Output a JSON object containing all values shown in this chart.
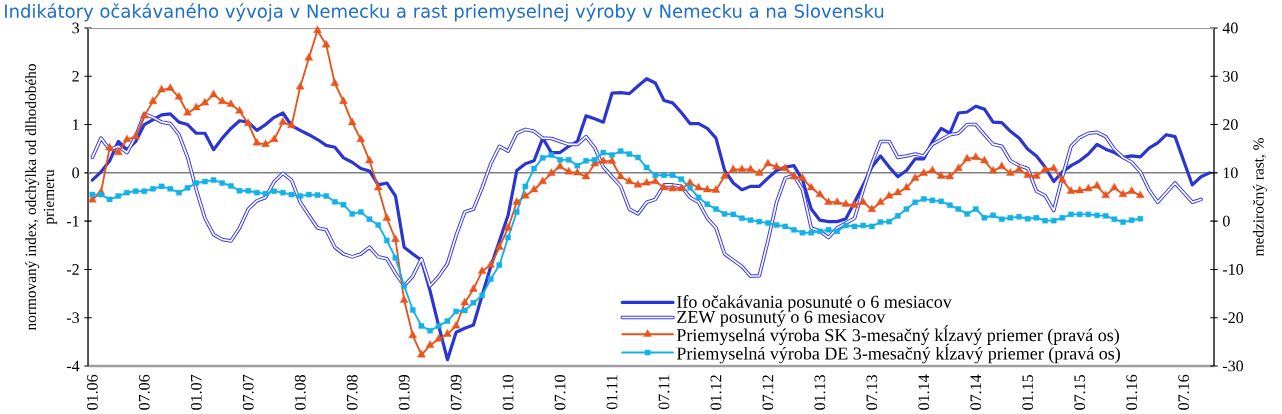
{
  "chart_data": {
    "type": "line",
    "title": "Indikátory očakávaného vývoja v Nemecku a rast priemyselnej výroby v Nemecku a na Slovensku",
    "ylabel": "normovaný index, odchýlka od dlhodobého priemeru",
    "y2label": "medziročný rast, %",
    "categories": [
      "01.06",
      null,
      null,
      null,
      null,
      null,
      "07.06",
      null,
      null,
      null,
      null,
      null,
      "01.07",
      null,
      null,
      null,
      null,
      null,
      "07.07",
      null,
      null,
      null,
      null,
      null,
      "01.08",
      null,
      null,
      null,
      null,
      null,
      "07.08",
      null,
      null,
      null,
      null,
      null,
      "01.09",
      null,
      null,
      null,
      null,
      null,
      "07.09",
      null,
      null,
      null,
      null,
      null,
      "01.10",
      null,
      null,
      null,
      null,
      null,
      "07.10",
      null,
      null,
      null,
      null,
      null,
      "01.11",
      null,
      null,
      null,
      null,
      null,
      "07.11",
      null,
      null,
      null,
      null,
      null,
      "01.12",
      null,
      null,
      null,
      null,
      null,
      "07.12",
      null,
      null,
      null,
      null,
      null,
      "01.13",
      null,
      null,
      null,
      null,
      null,
      "07.13",
      null,
      null,
      null,
      null,
      null,
      "01.14",
      null,
      null,
      null,
      null,
      null,
      "07.14",
      null,
      null,
      null,
      null,
      null,
      "01.15",
      null,
      null,
      null,
      null,
      null,
      "07.15",
      null,
      null,
      null,
      null,
      null,
      "01.16",
      null,
      null,
      null,
      null,
      null,
      "07.16",
      null,
      null,
      null
    ],
    "ylim": [
      -4,
      3
    ],
    "yticks": [
      -4,
      -3,
      -2,
      -1,
      0,
      1,
      2,
      3
    ],
    "y2lim": [
      -30,
      40
    ],
    "y2ticks": [
      -30,
      -20,
      -10,
      0,
      10,
      20,
      30,
      40
    ],
    "legend": "bottom right",
    "ref_lines": [
      {
        "axis": "y",
        "value": 0,
        "color": "#808080"
      }
    ],
    "series": [
      {
        "name": "Ifo očakávania posunuté o 6 mesiacov",
        "color": "#2b36d0",
        "values": [
          -0.15,
          0.02,
          0.25,
          0.65,
          0.48,
          0.65,
          1.0,
          1.1,
          1.2,
          1.22,
          1.05,
          1.0,
          0.82,
          0.82,
          0.48,
          0.72,
          0.92,
          1.08,
          1.05,
          0.88,
          1.0,
          1.15,
          1.24,
          0.98,
          0.88,
          0.79,
          0.69,
          0.57,
          0.53,
          0.31,
          0.22,
          0.09,
          0.04,
          -0.25,
          -0.21,
          -0.48,
          -1.54,
          -1.68,
          -1.81,
          -2.45,
          -3.18,
          -3.87,
          -3.3,
          -3.22,
          -3.15,
          -2.54,
          -1.94,
          -1.41,
          -0.88,
          0.05,
          0.19,
          0.25,
          0.72,
          0.42,
          0.42,
          0.55,
          0.65,
          1.18,
          1.12,
          1.05,
          1.65,
          1.66,
          1.64,
          1.8,
          1.95,
          1.86,
          1.5,
          1.45,
          1.25,
          1.02,
          1.02,
          0.92,
          0.72,
          0.05,
          -0.21,
          -0.35,
          -0.28,
          -0.28,
          -0.11,
          0.05,
          0.12,
          0.15,
          -0.15,
          -0.75,
          -0.98,
          -1.01,
          -1.01,
          -0.95,
          -0.61,
          -0.25,
          0.12,
          0.35,
          0.12,
          -0.08,
          0.05,
          0.29,
          0.29,
          0.65,
          0.92,
          0.82,
          1.24,
          1.26,
          1.38,
          1.32,
          1.05,
          1.04,
          0.86,
          0.72,
          0.49,
          0.35,
          0.12,
          -0.18,
          0.02,
          0.15,
          0.25,
          0.39,
          0.59,
          0.49,
          0.42,
          0.32,
          0.35,
          0.33,
          0.51,
          0.62,
          0.79,
          0.75,
          0.25,
          -0.25,
          -0.08,
          0.0
        ]
      },
      {
        "name": "ZEW posunutý o 6 mesiacov",
        "color": "#3c3ce6",
        "values": [
          0.32,
          0.72,
          0.48,
          0.55,
          0.42,
          0.75,
          1.22,
          1.15,
          1.05,
          1.02,
          0.79,
          0.32,
          -0.35,
          -0.94,
          -1.28,
          -1.38,
          -1.41,
          -1.14,
          -0.75,
          -0.58,
          -0.51,
          -0.18,
          -0.01,
          -0.15,
          -0.61,
          -0.88,
          -1.14,
          -1.18,
          -1.54,
          -1.68,
          -1.74,
          -1.68,
          -1.54,
          -1.74,
          -1.78,
          -2.08,
          -2.34,
          -2.14,
          -1.78,
          -2.34,
          -2.14,
          -1.88,
          -1.3,
          -0.81,
          -0.75,
          -0.31,
          0.19,
          0.55,
          0.45,
          0.82,
          0.9,
          0.86,
          0.72,
          0.71,
          0.65,
          0.59,
          0.59,
          0.75,
          0.52,
          0.12,
          -0.08,
          -0.28,
          -0.75,
          -0.85,
          -0.61,
          -0.55,
          -0.25,
          -0.25,
          -0.28,
          -0.51,
          -0.61,
          -0.94,
          -1.14,
          -1.68,
          -1.81,
          -1.94,
          -2.14,
          -2.13,
          -1.41,
          -0.61,
          -0.11,
          -0.05,
          -0.35,
          -1.14,
          -1.21,
          -1.34,
          -1.14,
          -1.04,
          -0.94,
          -0.35,
          0.19,
          0.65,
          0.65,
          0.32,
          0.35,
          0.39,
          0.35,
          0.59,
          0.69,
          0.79,
          0.82,
          1.0,
          1.0,
          0.79,
          0.59,
          0.55,
          0.25,
          0.15,
          0.09,
          -0.38,
          -0.47,
          -0.78,
          -0.08,
          0.55,
          0.73,
          0.82,
          0.84,
          0.75,
          0.49,
          0.32,
          0.22,
          0.02,
          -0.35,
          -0.61,
          -0.41,
          -0.21,
          -0.41,
          -0.61,
          -0.55,
          null
        ]
      },
      {
        "name": "Priemyselná výroba SK 3-mesačný kĺzavý priemer (pravá os)",
        "color": "#e8541c",
        "marker": "triangle",
        "axis": "y2",
        "values": [
          4.4,
          6.0,
          15.2,
          14.2,
          16.9,
          17.5,
          21.8,
          24.8,
          27.2,
          27.5,
          25.7,
          22.4,
          23.5,
          24.5,
          26.2,
          24.8,
          24.2,
          22.8,
          20.2,
          16.2,
          15.9,
          16.9,
          20.5,
          19.8,
          27.8,
          33.8,
          39.5,
          36.5,
          28.5,
          24.8,
          20.4,
          16.9,
          12.5,
          6.9,
          0.6,
          -3.8,
          -16.4,
          -23.7,
          -27.7,
          -25.7,
          -24.4,
          -23.4,
          -21.7,
          -16.9,
          -14.1,
          -10.4,
          -9.1,
          -5.4,
          -1.4,
          3.9,
          5.2,
          6.5,
          8.2,
          9.9,
          11.3,
          10.2,
          10.0,
          9.2,
          11.9,
          12.4,
          12.4,
          9.2,
          8.2,
          7.5,
          7.9,
          8.2,
          6.9,
          6.7,
          6.7,
          7.9,
          6.9,
          6.5,
          6.4,
          9.3,
          10.7,
          10.7,
          10.7,
          9.9,
          11.9,
          11.2,
          10.9,
          9.2,
          8.9,
          6.9,
          5.5,
          3.9,
          3.9,
          3.5,
          3.3,
          3.9,
          2.4,
          3.9,
          5.2,
          5.9,
          6.9,
          8.9,
          9.9,
          10.5,
          9.3,
          9.2,
          10.9,
          12.9,
          13.2,
          12.5,
          10.4,
          11.3,
          9.9,
          10.7,
          9.5,
          9.3,
          10.7,
          10.9,
          8.5,
          6.2,
          6.3,
          6.7,
          7.3,
          5.3,
          6.9,
          5.5,
          6.2,
          5.3,
          null,
          null,
          null,
          null,
          null,
          null,
          null,
          null
        ]
      },
      {
        "name": "Priemyselná výroba DE 3-mesačný kĺzavý priemer (pravá os)",
        "color": "#14b1e7",
        "marker": "square",
        "axis": "y2",
        "values": [
          5.5,
          5.5,
          4.5,
          5.2,
          5.9,
          6.2,
          6.2,
          6.7,
          7.2,
          6.7,
          5.9,
          6.9,
          7.9,
          8.2,
          8.5,
          7.9,
          7.3,
          6.3,
          6.3,
          5.9,
          5.7,
          6.2,
          5.9,
          5.5,
          5.2,
          5.5,
          5.4,
          5.2,
          4.0,
          3.4,
          1.5,
          1.9,
          0.4,
          -0.8,
          -4.0,
          -7.6,
          -13.4,
          -18.4,
          -21.7,
          -22.7,
          -21.7,
          -20.7,
          -18.7,
          -18.5,
          -16.9,
          -15.4,
          -12.0,
          -9.1,
          -3.4,
          1.9,
          7.2,
          10.9,
          13.1,
          13.7,
          12.7,
          12.7,
          11.5,
          12.5,
          12.7,
          14.2,
          13.7,
          14.5,
          13.9,
          13.2,
          11.1,
          9.5,
          9.5,
          9.5,
          8.7,
          6.9,
          4.9,
          3.5,
          2.5,
          1.5,
          1.4,
          0.6,
          0.2,
          -0.1,
          -0.4,
          -0.8,
          -1.1,
          -1.8,
          -2.4,
          -2.4,
          -2.1,
          -1.8,
          -2.1,
          -0.9,
          -1.1,
          -0.9,
          -1.1,
          -0.2,
          -0.1,
          1.1,
          2.5,
          3.9,
          4.6,
          4.3,
          4.1,
          3.3,
          2.5,
          1.5,
          2.5,
          0.7,
          1.2,
          0.4,
          0.7,
          0.9,
          0.5,
          0.7,
          0.1,
          0.1,
          0.7,
          1.4,
          1.4,
          1.4,
          1.2,
          1.1,
          0.4,
          -0.2,
          0.2,
          0.5,
          null,
          null,
          null,
          null,
          null,
          null,
          null,
          null
        ]
      }
    ]
  }
}
